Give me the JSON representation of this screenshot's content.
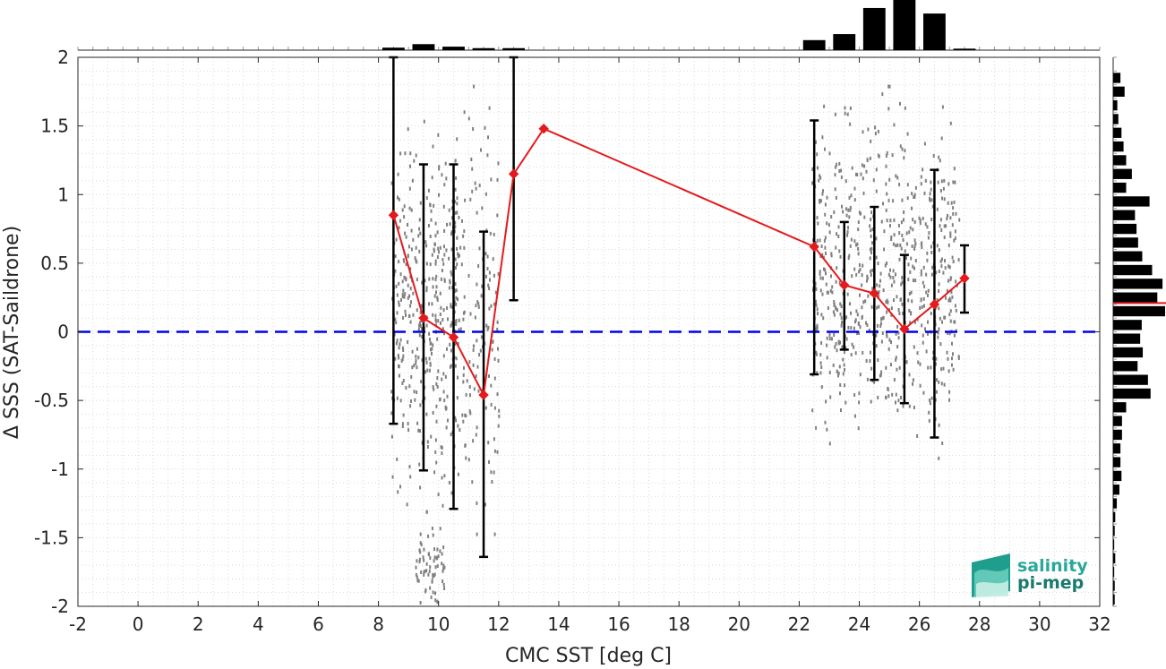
{
  "chart_data": {
    "type": "scatter",
    "xlabel": "CMC SST [deg C]",
    "ylabel": "Δ SSS (SAT-Saildrone)",
    "xlim": [
      -2,
      32
    ],
    "ylim": [
      -2,
      2
    ],
    "x_ticks": [
      "-2",
      "0",
      "2",
      "4",
      "6",
      "8",
      "10",
      "12",
      "14",
      "16",
      "18",
      "20",
      "22",
      "24",
      "26",
      "28",
      "30",
      "32"
    ],
    "y_ticks": [
      "2",
      "1.5",
      "1",
      "0.5",
      "0",
      "-0.5",
      "-1",
      "-1.5",
      "-2"
    ],
    "grid": true,
    "reference_line": {
      "y": 0,
      "style": "dashed",
      "color": "#0000ee"
    },
    "binned_mean": {
      "color": "#e41a1c",
      "points": [
        {
          "x": 8.5,
          "y": 0.85,
          "lo": -0.67,
          "hi": 2.0
        },
        {
          "x": 9.5,
          "y": 0.1,
          "lo": -1.01,
          "hi": 1.22
        },
        {
          "x": 10.5,
          "y": -0.04,
          "lo": -1.29,
          "hi": 1.22
        },
        {
          "x": 11.5,
          "y": -0.46,
          "lo": -1.64,
          "hi": 0.73
        },
        {
          "x": 12.5,
          "y": 1.15,
          "lo": 0.23,
          "hi": 2.0
        },
        {
          "x": 13.5,
          "y": 1.48,
          "lo": null,
          "hi": null
        },
        {
          "x": 22.5,
          "y": 0.62,
          "lo": -0.31,
          "hi": 1.54
        },
        {
          "x": 23.5,
          "y": 0.34,
          "lo": -0.13,
          "hi": 0.8
        },
        {
          "x": 24.5,
          "y": 0.28,
          "lo": -0.35,
          "hi": 0.91
        },
        {
          "x": 25.5,
          "y": 0.02,
          "lo": -0.52,
          "hi": 0.56
        },
        {
          "x": 26.5,
          "y": 0.2,
          "lo": -0.77,
          "hi": 1.18
        },
        {
          "x": 27.5,
          "y": 0.39,
          "lo": 0.14,
          "hi": 0.63
        }
      ]
    },
    "scatter_clusters": [
      {
        "x_range": [
          8.4,
          10.6
        ],
        "y_range": [
          -1.3,
          1.6
        ],
        "density": 0.55
      },
      {
        "x_range": [
          9.2,
          10.2
        ],
        "y_range": [
          -2.0,
          -1.4
        ],
        "density": 0.1
      },
      {
        "x_range": [
          10.4,
          12.0
        ],
        "y_range": [
          -1.7,
          1.8
        ],
        "density": 0.25
      },
      {
        "x_range": [
          22.4,
          27.3
        ],
        "y_range": [
          -1.0,
          1.8
        ],
        "density": 1.0
      }
    ],
    "hist_x": {
      "x": [
        8.5,
        9.5,
        10.5,
        11.5,
        12.5,
        22.5,
        23.5,
        24.5,
        25.5,
        26.5,
        27.5
      ],
      "values": [
        0.05,
        0.12,
        0.07,
        0.04,
        0.04,
        0.2,
        0.32,
        0.84,
        1.0,
        0.73,
        0.03
      ]
    },
    "hist_y": {
      "y": [
        1.85,
        1.75,
        1.65,
        1.55,
        1.45,
        1.35,
        1.25,
        1.15,
        1.05,
        0.95,
        0.85,
        0.75,
        0.65,
        0.55,
        0.45,
        0.35,
        0.25,
        0.15,
        0.05,
        -0.05,
        -0.15,
        -0.25,
        -0.35,
        -0.45,
        -0.55,
        -0.65,
        -0.75,
        -0.85,
        -0.95,
        -1.05,
        -1.15,
        -1.25,
        -1.35,
        -1.45,
        -1.55,
        -1.65,
        -1.75,
        -1.85,
        -1.95
      ],
      "values": [
        0.14,
        0.22,
        0.08,
        0.1,
        0.16,
        0.2,
        0.25,
        0.36,
        0.25,
        0.7,
        0.42,
        0.45,
        0.48,
        0.56,
        0.75,
        0.95,
        0.85,
        1.0,
        0.55,
        0.52,
        0.57,
        0.47,
        0.67,
        0.72,
        0.25,
        0.17,
        0.17,
        0.14,
        0.14,
        0.16,
        0.12,
        0.07,
        0.04,
        0.03,
        0.02,
        0.04,
        0.02,
        0.03,
        0.03
      ]
    },
    "hist_y_marker": 0.21
  },
  "logo": {
    "line1": "salinity",
    "line2": "pi-mep"
  }
}
